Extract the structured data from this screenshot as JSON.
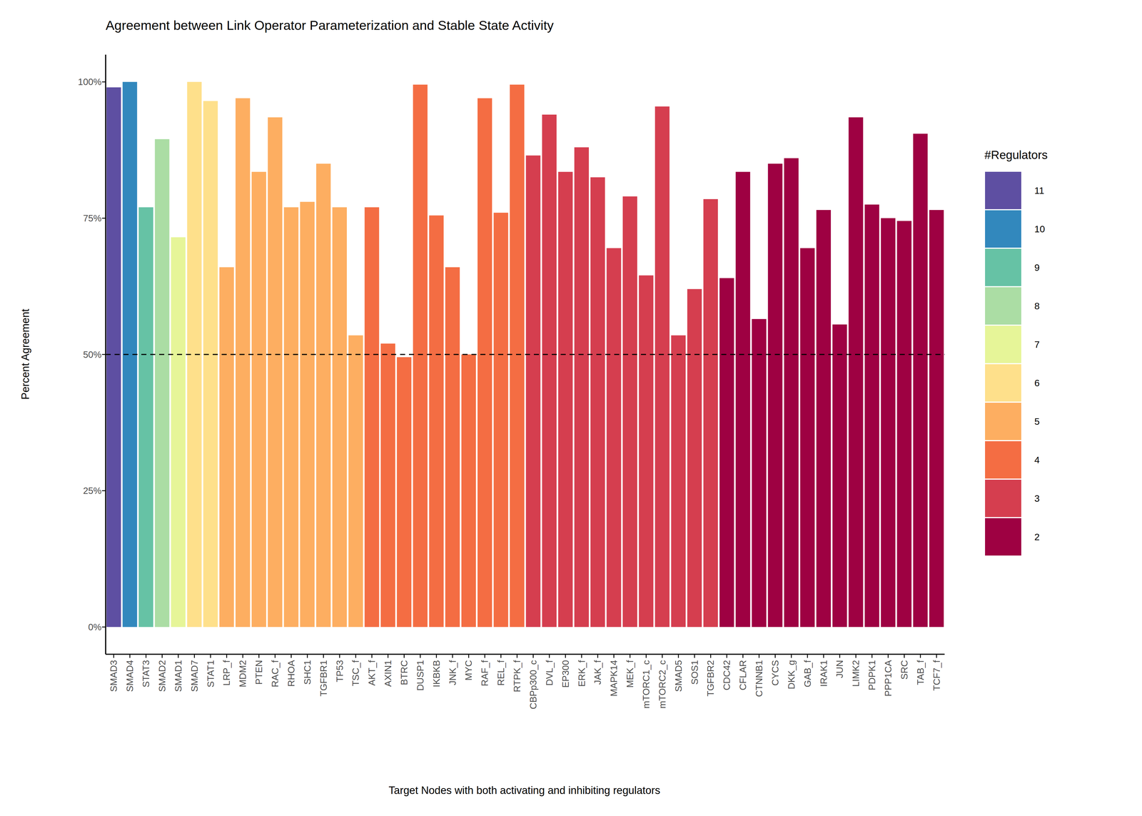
{
  "chart_data": {
    "type": "bar",
    "title": "Agreement between Link Operator Parameterization and Stable State Activity",
    "x_label": "Target Nodes with both activating and inhibiting regulators",
    "y_label": "Percent Agreement",
    "categories": [
      "SMAD3",
      "SMAD4",
      "STAT3",
      "SMAD2",
      "SMAD1",
      "SMAD7",
      "STAT1",
      "LRP_f",
      "MDM2",
      "PTEN",
      "RAC_f",
      "RHOA",
      "SHC1",
      "TGFBR1",
      "TP53",
      "TSC_f",
      "AKT_f",
      "AXIN1",
      "BTRC",
      "DUSP1",
      "IKBKB",
      "JNK_f",
      "MYC",
      "RAF_f",
      "REL_f",
      "RTPK_f",
      "CBPp300_c",
      "DVL_f",
      "EP300",
      "ERK_f",
      "JAK_f",
      "MAPK14",
      "MEK_f",
      "mTORC1_c",
      "mTORC2_c",
      "SMAD5",
      "SOS1",
      "TGFBR2",
      "CDC42",
      "CFLAR",
      "CTNNB1",
      "CYCS",
      "DKK_g",
      "GAB_f",
      "IRAK1",
      "JUN",
      "LIMK2",
      "PDPK1",
      "PPP1CA",
      "SRC",
      "TAB_f",
      "TCF7_f"
    ],
    "values": [
      99,
      100,
      77,
      89.5,
      71.5,
      100,
      96.5,
      66,
      97,
      83.5,
      93.5,
      77,
      78,
      85,
      77,
      53.5,
      77,
      52,
      49.5,
      99.5,
      75.5,
      66,
      50,
      97,
      76,
      99.5,
      86.5,
      94,
      83.5,
      88,
      82.5,
      69.5,
      79,
      64.5,
      95.5,
      53.5,
      62,
      78.5,
      64,
      83.5,
      56.5,
      85,
      86,
      69.5,
      76.5,
      55.5,
      93.5,
      77.5,
      75,
      74.5,
      90.5,
      76.5
    ],
    "colors": [
      "#5E4FA2",
      "#3288BD",
      "#66C2A5",
      "#ABDDA4",
      "#E6F598",
      "#FEE08B",
      "#FEE08B",
      "#FDAE61",
      "#FDAE61",
      "#FDAE61",
      "#FDAE61",
      "#FDAE61",
      "#FDAE61",
      "#FDAE61",
      "#FDAE61",
      "#FDAE61",
      "#F46D43",
      "#F46D43",
      "#F46D43",
      "#F46D43",
      "#F46D43",
      "#F46D43",
      "#F46D43",
      "#F46D43",
      "#F46D43",
      "#F46D43",
      "#D53E4F",
      "#D53E4F",
      "#D53E4F",
      "#D53E4F",
      "#D53E4F",
      "#D53E4F",
      "#D53E4F",
      "#D53E4F",
      "#D53E4F",
      "#D53E4F",
      "#D53E4F",
      "#D53E4F",
      "#9E0142",
      "#9E0142",
      "#9E0142",
      "#9E0142",
      "#9E0142",
      "#9E0142",
      "#9E0142",
      "#9E0142",
      "#9E0142",
      "#9E0142",
      "#9E0142",
      "#9E0142",
      "#9E0142",
      "#9E0142"
    ],
    "color_key": {
      "title": "#Regulators",
      "labels": [
        "11",
        "10",
        "9",
        "8",
        "7",
        "6",
        "5",
        "4",
        "3",
        "2"
      ],
      "colors": [
        "#5E4FA2",
        "#3288BD",
        "#66C2A5",
        "#ABDDA4",
        "#E6F598",
        "#FEE08B",
        "#FDAE61",
        "#F46D43",
        "#D53E4F",
        "#9E0142"
      ]
    },
    "ylim": [
      -5,
      105
    ],
    "yticks": [
      {
        "value": 0,
        "label": "0%"
      },
      {
        "value": 25,
        "label": "25%"
      },
      {
        "value": 50,
        "label": "50%"
      },
      {
        "value": 75,
        "label": "75%"
      },
      {
        "value": 100,
        "label": "100%"
      }
    ],
    "annotations": [
      {
        "type": "hline",
        "y": 50,
        "line_style": "dashed"
      }
    ],
    "grid": false
  }
}
